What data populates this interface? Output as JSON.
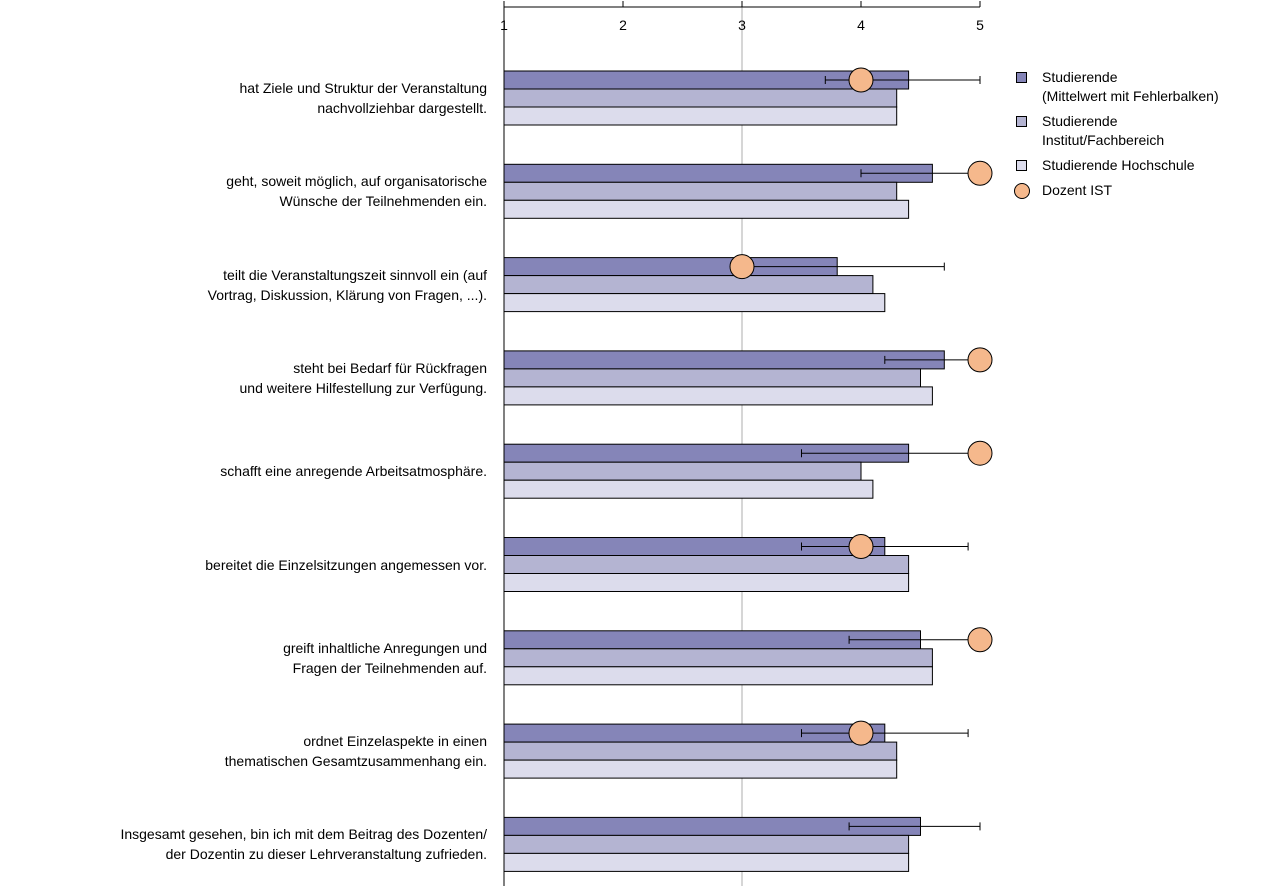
{
  "chart_data": {
    "type": "bar",
    "orientation": "horizontal",
    "xlim": [
      1,
      5
    ],
    "x_ticks": [
      "1",
      "2",
      "3",
      "4",
      "5"
    ],
    "reference_line": 3,
    "categories": [
      [
        "hat Ziele und Struktur der Veranstaltung",
        "nachvollziehbar dargestellt."
      ],
      [
        "geht, soweit möglich, auf organisatorische",
        "Wünsche der Teilnehmenden ein."
      ],
      [
        "teilt die Veranstaltungszeit sinnvoll ein (auf",
        "Vortrag, Diskussion, Klärung von Fragen, ...)."
      ],
      [
        "steht bei Bedarf für Rückfragen",
        "und weitere Hilfestellung zur Verfügung."
      ],
      [
        "schafft eine anregende Arbeitsatmosphäre."
      ],
      [
        "bereitet die Einzelsitzungen angemessen vor."
      ],
      [
        "greift inhaltliche Anregungen und",
        "Fragen der Teilnehmenden auf."
      ],
      [
        "ordnet Einzelaspekte in einen",
        "thematischen Gesamtzusammenhang ein."
      ],
      [
        "Insgesamt gesehen, bin ich mit dem Beitrag des Dozenten/",
        "der Dozentin zu dieser Lehrveranstaltung zufrieden."
      ]
    ],
    "series": [
      {
        "name": [
          "Studierende",
          "(Mittelwert mit Fehlerbalken)"
        ],
        "color": "#8585b8",
        "values": [
          4.4,
          4.6,
          3.8,
          4.7,
          4.4,
          4.2,
          4.5,
          4.2,
          4.5
        ],
        "error_low": [
          3.7,
          4.0,
          3.0,
          4.2,
          3.5,
          3.5,
          3.9,
          3.5,
          3.9
        ],
        "error_high": [
          5.0,
          5.0,
          4.7,
          5.0,
          5.0,
          4.9,
          5.0,
          4.9,
          5.0
        ]
      },
      {
        "name": [
          "Studierende",
          "Institut/Fachbereich"
        ],
        "color": "#b4b4d2",
        "values": [
          4.3,
          4.3,
          4.1,
          4.5,
          4.0,
          4.4,
          4.6,
          4.3,
          4.4
        ]
      },
      {
        "name": [
          "Studierende Hochschule"
        ],
        "color": "#dcdcec",
        "values": [
          4.3,
          4.4,
          4.2,
          4.6,
          4.1,
          4.4,
          4.6,
          4.3,
          4.4
        ]
      }
    ],
    "markers": {
      "name": [
        "Dozent IST"
      ],
      "color": "#f5b88c",
      "values": [
        4.0,
        5.0,
        3.0,
        5.0,
        5.0,
        4.0,
        5.0,
        4.0,
        null
      ]
    },
    "legend_position": "top-right",
    "grid": false
  }
}
